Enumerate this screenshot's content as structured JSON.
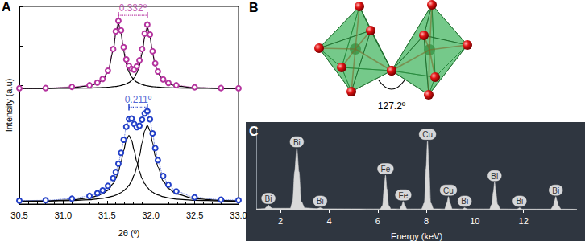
{
  "chart_data": [
    {
      "title": "A",
      "type": "line",
      "x_label": "2θ (º)",
      "y_label": "Intensity (a.u)",
      "x": [
        30.5,
        30.8,
        31.1,
        31.3,
        31.39,
        31.45,
        31.51,
        31.57,
        31.6,
        31.63,
        31.66,
        31.69,
        31.72,
        31.75,
        31.78,
        31.81,
        31.84,
        31.87,
        31.9,
        31.93,
        31.96,
        31.99,
        32.02,
        32.05,
        32.08,
        32.14,
        32.2,
        32.29,
        32.5,
        32.8,
        33.0
      ],
      "series": [
        {
          "color": "#b5349f",
          "marker": "circle",
          "line_style": "dotted",
          "values": [
            5.86,
            5.87,
            5.93,
            6.01,
            6.15,
            6.33,
            6.75,
            7.84,
            8.74,
            9.27,
            8.79,
            7.94,
            7.32,
            6.99,
            6.84,
            6.8,
            6.96,
            7.27,
            7.84,
            8.63,
            9.08,
            8.58,
            7.73,
            7.12,
            6.71,
            6.31,
            6.13,
            6.01,
            5.91,
            5.87,
            5.86
          ]
        },
        {
          "color": "#000000",
          "line_style": "solid",
          "values": [
            5.85,
            5.86,
            5.9,
            5.98,
            6.1,
            6.27,
            6.68,
            7.74,
            8.63,
            9.14,
            8.63,
            7.74,
            7.08,
            6.68,
            6.43,
            6.27,
            6.17,
            6.1,
            6.05,
            6.01,
            5.98,
            5.96,
            5.94,
            5.93,
            5.92,
            5.9,
            5.89,
            5.88,
            5.86,
            5.85,
            5.85
          ]
        },
        {
          "color": "#000000",
          "line_style": "solid",
          "values": [
            5.85,
            5.85,
            5.86,
            5.87,
            5.89,
            5.9,
            5.91,
            5.94,
            5.95,
            5.97,
            6.0,
            6.04,
            6.08,
            6.15,
            6.25,
            6.39,
            6.63,
            7.01,
            7.63,
            8.46,
            8.94,
            8.46,
            7.63,
            7.01,
            6.63,
            6.25,
            6.08,
            5.97,
            5.89,
            5.86,
            5.85
          ]
        },
        {
          "color": "#2340c8",
          "marker": "circle",
          "line_style": "dotted",
          "values": [
            0.17,
            0.19,
            0.27,
            0.41,
            0.55,
            0.69,
            0.92,
            1.31,
            1.62,
            2.04,
            2.59,
            3.25,
            3.91,
            4.3,
            4.33,
            4.05,
            3.89,
            3.96,
            4.27,
            4.58,
            4.7,
            4.29,
            3.58,
            2.83,
            2.22,
            1.42,
            0.98,
            0.64,
            0.34,
            0.22,
            0.19
          ]
        },
        {
          "color": "#000000",
          "line_style": "solid",
          "values": [
            0.15,
            0.16,
            0.21,
            0.31,
            0.41,
            0.52,
            0.7,
            1.03,
            1.29,
            1.65,
            2.13,
            2.7,
            3.24,
            3.47,
            3.24,
            2.7,
            2.13,
            1.65,
            1.29,
            1.03,
            0.84,
            0.7,
            0.6,
            0.52,
            0.46,
            0.37,
            0.31,
            0.25,
            0.19,
            0.16,
            0.15
          ]
        },
        {
          "color": "#000000",
          "line_style": "solid",
          "values": [
            0.14,
            0.15,
            0.18,
            0.22,
            0.26,
            0.29,
            0.34,
            0.4,
            0.45,
            0.51,
            0.58,
            0.67,
            0.79,
            0.95,
            1.17,
            1.47,
            1.88,
            2.43,
            3.1,
            3.71,
            3.98,
            3.71,
            3.1,
            2.43,
            1.88,
            1.17,
            0.79,
            0.51,
            0.27,
            0.18,
            0.16
          ]
        }
      ],
      "xlim": [
        30.5,
        33.0
      ],
      "xticks": [
        30.5,
        {
          "value": 31,
          "label": "31.0"
        },
        31.5,
        {
          "value": 32,
          "label": "32.0"
        },
        32.5,
        {
          "value": 33,
          "label": "33.0"
        }
      ],
      "ylim": [
        0,
        10
      ],
      "yticks": [
        0,
        2,
        4,
        6,
        8,
        10
      ],
      "tick_labels": "x",
      "grid": false,
      "annotations": [
        {
          "text": "0.332º",
          "x": [
            31.63,
            31.96
          ],
          "y": 9.55,
          "color": "#b5349f"
        },
        {
          "text": "0.211º",
          "x": [
            31.75,
            31.96
          ],
          "y": 4.9,
          "color": "#2340c8"
        }
      ]
    },
    {
      "title": "C",
      "type": "area",
      "x_label": "Energy (keV)",
      "color": "#d9d9d9",
      "x": [
        1.0,
        1.35,
        1.43,
        1.5,
        1.57,
        1.65,
        2.4,
        2.5,
        2.58,
        2.67,
        2.76,
        2.85,
        3.0,
        3.5,
        3.58,
        3.63,
        3.68,
        3.76,
        6.1,
        6.2,
        6.26,
        6.32,
        6.38,
        6.45,
        6.55,
        6.9,
        6.99,
        7.05,
        7.11,
        7.2,
        7.8,
        7.92,
        7.99,
        8.05,
        8.11,
        8.18,
        8.3,
        8.75,
        8.85,
        8.91,
        8.97,
        9.07,
        9.48,
        9.54,
        9.58,
        9.62,
        9.68,
        10.6,
        10.7,
        10.76,
        10.81,
        10.86,
        10.93,
        11.05,
        11.74,
        11.8,
        11.84,
        11.88,
        11.94,
        13.12,
        13.22,
        13.28,
        13.33,
        13.38,
        13.45,
        13.55,
        14.2
      ],
      "values": [
        0.01,
        0.015,
        0.04,
        0.07,
        0.04,
        0.02,
        0.02,
        0.12,
        0.55,
        0.89,
        0.55,
        0.12,
        0.025,
        0.015,
        0.022,
        0.03,
        0.022,
        0.012,
        0.01,
        0.06,
        0.3,
        0.5,
        0.3,
        0.06,
        0.012,
        0.01,
        0.06,
        0.12,
        0.06,
        0.01,
        0.01,
        0.1,
        0.6,
        1.0,
        0.6,
        0.1,
        0.012,
        0.01,
        0.1,
        0.19,
        0.1,
        0.012,
        0.01,
        0.02,
        0.03,
        0.02,
        0.01,
        0.01,
        0.08,
        0.26,
        0.4,
        0.26,
        0.08,
        0.01,
        0.008,
        0.02,
        0.03,
        0.02,
        0.008,
        0.008,
        0.05,
        0.13,
        0.19,
        0.13,
        0.05,
        0.008,
        0.006
      ],
      "xlim": [
        1,
        14.2
      ],
      "xticks": [
        2,
        4,
        6,
        8,
        10,
        12
      ],
      "ylim": [
        0,
        1.2
      ],
      "tick_labels": "x",
      "grid": false,
      "annotations": [
        {
          "text": "Bi",
          "x": 1.5,
          "y": 0.07
        },
        {
          "text": "Bi",
          "x": 2.67,
          "y": 0.89
        },
        {
          "text": "Bi",
          "x": 3.63,
          "y": 0.03
        },
        {
          "text": "Fe",
          "x": 6.32,
          "y": 0.5
        },
        {
          "text": "Fe",
          "x": 7.05,
          "y": 0.12
        },
        {
          "text": "Cu",
          "x": 8.05,
          "y": 1.0
        },
        {
          "text": "Cu",
          "x": 8.91,
          "y": 0.19
        },
        {
          "text": "Bi",
          "x": 9.58,
          "y": 0.03
        },
        {
          "text": "Bi",
          "x": 10.81,
          "y": 0.4
        },
        {
          "text": "Bi",
          "x": 11.84,
          "y": 0.03
        },
        {
          "text": "Bi",
          "x": 13.33,
          "y": 0.19
        }
      ]
    }
  ],
  "diagram": {
    "title": "B",
    "angle_label": "127.2º"
  }
}
